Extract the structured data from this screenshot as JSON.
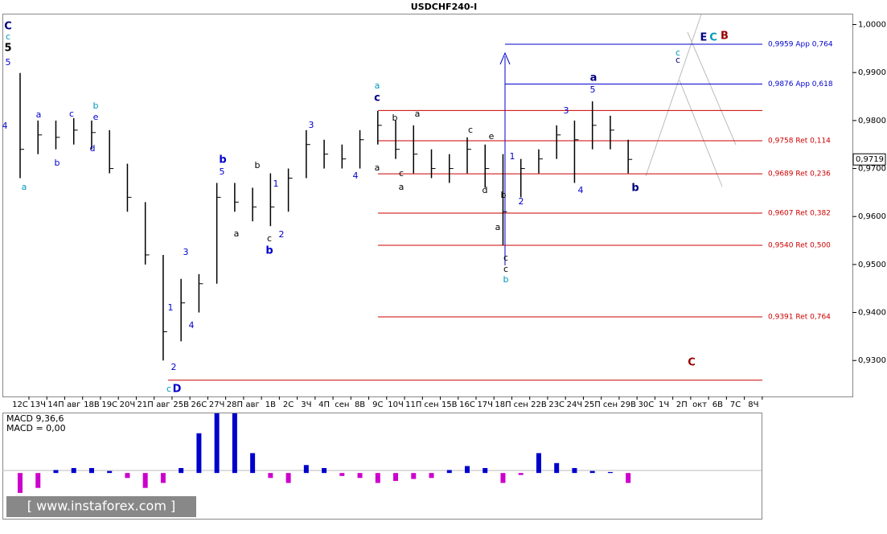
{
  "chart_data": {
    "type": "ohlc",
    "title": "USDCHF240-I",
    "categories": [
      "12C",
      "13Ч",
      "14П",
      "авг",
      "18В",
      "19С",
      "20Ч",
      "21П",
      "авг",
      "25В",
      "26С",
      "27Ч",
      "28П",
      "авг",
      "1В",
      "2С",
      "3Ч",
      "4П",
      "сен",
      "8В",
      "9С",
      "10Ч",
      "11П",
      "сен",
      "15В",
      "16С",
      "17Ч",
      "18П",
      "сен",
      "22В",
      "23С",
      "24Ч",
      "25П",
      "сен",
      "29В",
      "30С",
      "1Ч",
      "2П",
      "окт",
      "6В",
      "7С",
      "8Ч"
    ],
    "high": [
      0.9899,
      0.98,
      0.98,
      0.9805,
      0.98,
      0.978,
      0.971,
      0.963,
      0.952,
      0.947,
      0.948,
      0.967,
      0.967,
      0.966,
      0.969,
      0.97,
      0.978,
      0.976,
      0.975,
      0.978,
      0.982,
      0.98,
      0.979,
      0.974,
      0.973,
      0.9765,
      0.975,
      0.973,
      0.972,
      0.974,
      0.979,
      0.98,
      0.984,
      0.981,
      0.976,
      null,
      null,
      null,
      null,
      null,
      null,
      null
    ],
    "low": [
      0.968,
      0.973,
      0.974,
      0.975,
      0.974,
      0.969,
      0.961,
      0.95,
      0.93,
      0.934,
      0.94,
      0.946,
      0.961,
      0.959,
      0.958,
      0.961,
      0.968,
      0.97,
      0.97,
      0.97,
      0.975,
      0.972,
      0.969,
      0.968,
      0.967,
      0.969,
      0.966,
      0.954,
      0.964,
      0.969,
      0.972,
      0.967,
      0.974,
      0.974,
      0.969,
      null,
      null,
      null,
      null,
      null,
      null,
      null
    ],
    "close": [
      0.974,
      0.977,
      0.9765,
      0.978,
      0.9775,
      0.97,
      0.964,
      0.952,
      0.936,
      0.942,
      0.946,
      0.964,
      0.963,
      0.962,
      0.962,
      0.968,
      0.975,
      0.973,
      0.972,
      0.976,
      0.979,
      0.974,
      0.973,
      0.97,
      0.97,
      0.974,
      0.97,
      0.961,
      0.97,
      0.972,
      0.977,
      0.976,
      0.979,
      0.978,
      0.9719,
      null,
      null,
      null,
      null,
      null,
      null,
      null
    ],
    "color": "#000000",
    "ylim": [
      0.9225,
      1.0021
    ],
    "yticks": [
      {
        "value": 1.0,
        "label": "1,0000"
      },
      {
        "value": 0.99,
        "label": "0,9900"
      },
      {
        "value": 0.98,
        "label": "0,9800"
      },
      {
        "value": 0.97,
        "label": "0,9700"
      },
      {
        "value": 0.96,
        "label": "0,9600"
      },
      {
        "value": 0.95,
        "label": "0,9500"
      },
      {
        "value": 0.94,
        "label": "0,9400"
      },
      {
        "value": 0.93,
        "label": "0,9300"
      }
    ],
    "current_price": {
      "value": 0.9719,
      "label": "0,9719"
    },
    "levels": [
      {
        "value": 0.9959,
        "label": "0,9959 App 0,764",
        "color": "#0000cc"
      },
      {
        "value": 0.9876,
        "label": "0,9876 App 0,618",
        "color": "#0000cc"
      },
      {
        "value": 0.9821,
        "color": "#cc0000"
      },
      {
        "value": 0.9758,
        "label": "0,9758 Ret 0,114",
        "color": "#cc0000"
      },
      {
        "value": 0.9689,
        "label": "0,9689 Ret 0,236",
        "color": "#cc0000"
      },
      {
        "value": 0.9607,
        "label": "0,9607 Ret 0,382",
        "color": "#cc0000"
      },
      {
        "value": 0.954,
        "label": "0,9540 Ret 0,500",
        "color": "#cc0000"
      },
      {
        "value": 0.9391,
        "label": "0,9391 Ret 0,764",
        "color": "#cc0000"
      },
      {
        "value": 0.9259,
        "color": "#cc0000"
      }
    ],
    "annotations": [
      {
        "text": "C",
        "color": "#000080"
      },
      {
        "text": "c",
        "color": "#0099bb"
      },
      {
        "text": "5",
        "color": "#000000"
      },
      {
        "text": "5",
        "color": "#0000cc"
      },
      {
        "text": "4",
        "color": "#0000cc"
      },
      {
        "text": "a",
        "color": "#0099bb"
      },
      {
        "text": "a",
        "color": "#0000cc"
      },
      {
        "text": "b",
        "color": "#0000cc"
      },
      {
        "text": "c",
        "color": "#0000cc"
      },
      {
        "text": "b",
        "color": "#0099bb"
      },
      {
        "text": "e",
        "color": "#0000cc"
      },
      {
        "text": "d",
        "color": "#0000cc"
      },
      {
        "text": "1",
        "color": "#0000cc"
      },
      {
        "text": "2",
        "color": "#0000cc"
      },
      {
        "text": "3",
        "color": "#0000cc"
      },
      {
        "text": "4",
        "color": "#0000cc"
      },
      {
        "text": "c",
        "color": "#0099bb"
      },
      {
        "text": "D",
        "color": "#0000cc"
      },
      {
        "text": "b",
        "color": "#0000cc"
      },
      {
        "text": "5",
        "color": "#0000cc"
      },
      {
        "text": "a",
        "color": "#000000"
      },
      {
        "text": "b",
        "color": "#000000"
      },
      {
        "text": "1",
        "color": "#0000cc"
      },
      {
        "text": "c",
        "color": "#000000"
      },
      {
        "text": "b",
        "color": "#0000cc"
      },
      {
        "text": "2",
        "color": "#0000cc"
      },
      {
        "text": "3",
        "color": "#0000cc"
      },
      {
        "text": "4",
        "color": "#0000cc"
      },
      {
        "text": "a",
        "color": "#0099bb"
      },
      {
        "text": "c",
        "color": "#000080"
      },
      {
        "text": "a",
        "color": "#000000"
      },
      {
        "text": "b",
        "color": "#000000"
      },
      {
        "text": "c",
        "color": "#000000"
      },
      {
        "text": "a",
        "color": "#000000"
      },
      {
        "text": "a",
        "color": "#000000"
      },
      {
        "text": "c",
        "color": "#000000"
      },
      {
        "text": "e",
        "color": "#000000"
      },
      {
        "text": "d",
        "color": "#000000"
      },
      {
        "text": "b",
        "color": "#000000"
      },
      {
        "text": "a",
        "color": "#000000"
      },
      {
        "text": "c",
        "color": "#000000"
      },
      {
        "text": "c",
        "color": "#000000"
      },
      {
        "text": "b",
        "color": "#0099bb"
      },
      {
        "text": "1",
        "color": "#0000cc"
      },
      {
        "text": "2",
        "color": "#0000cc"
      },
      {
        "text": "3",
        "color": "#0000cc"
      },
      {
        "text": "5",
        "color": "#0000cc"
      },
      {
        "text": "a",
        "color": "#000080"
      },
      {
        "text": "4",
        "color": "#0000cc"
      },
      {
        "text": "b",
        "color": "#000080"
      },
      {
        "text": "c",
        "color": "#0099bb"
      },
      {
        "text": "c",
        "color": "#000080"
      },
      {
        "text": "E",
        "color": "#000080"
      },
      {
        "text": "C",
        "color": "#0099bb"
      },
      {
        "text": "B",
        "color": "#990000"
      },
      {
        "text": "C",
        "color": "#990000"
      }
    ],
    "macd": {
      "title": "MACD 9,36,6",
      "value_label": "MACD = 0,00",
      "values": [
        -0.002,
        -0.0015,
        0.0003,
        0.0005,
        0.0005,
        0.0002,
        -0.0005,
        -0.0015,
        -0.001,
        0.0005,
        0.004,
        0.006,
        0.006,
        0.002,
        -0.0005,
        -0.001,
        0.0008,
        0.0005,
        -0.0003,
        -0.0005,
        -0.001,
        -0.0008,
        -0.0006,
        -0.0005,
        0.0003,
        0.0007,
        0.0005,
        -0.001,
        -0.0002,
        0.002,
        0.001,
        0.0005,
        0.0002,
        0.0001,
        -0.001,
        null,
        null,
        null,
        null,
        null,
        null,
        null
      ],
      "ylim": [
        -0.0046,
        0.006
      ],
      "up_color": "#0000cc",
      "down_color": "#cc00cc"
    },
    "watermark": "[ www.instaforex.com ]"
  }
}
